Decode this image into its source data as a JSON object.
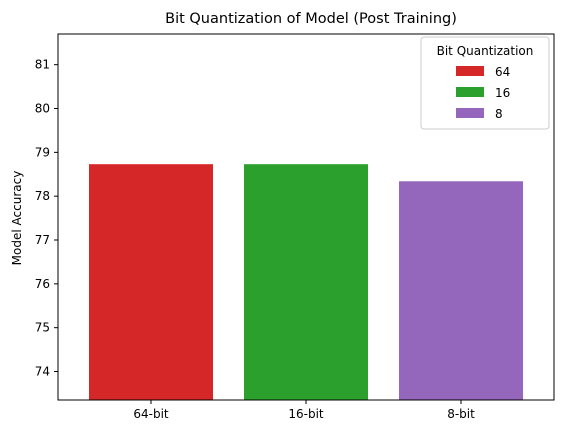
{
  "chart_data": {
    "type": "bar",
    "title": "Bit Quantization of Model (Post Training)",
    "xlabel": "",
    "ylabel": "Model Accuracy",
    "categories": [
      "64-bit",
      "16-bit",
      "8-bit"
    ],
    "values": [
      78.73,
      78.73,
      78.34
    ],
    "bar_colors": [
      "#d62728",
      "#2ca02c",
      "#9467bd"
    ],
    "ylim": [
      73.35,
      81.7
    ],
    "yticks": [
      74,
      75,
      76,
      77,
      78,
      79,
      80,
      81
    ],
    "grid": false,
    "legend": {
      "title": "Bit Quantization",
      "position": "top-right",
      "entries": [
        {
          "label": "64",
          "color": "#d62728"
        },
        {
          "label": "16",
          "color": "#2ca02c"
        },
        {
          "label": "8",
          "color": "#9467bd"
        }
      ]
    }
  }
}
